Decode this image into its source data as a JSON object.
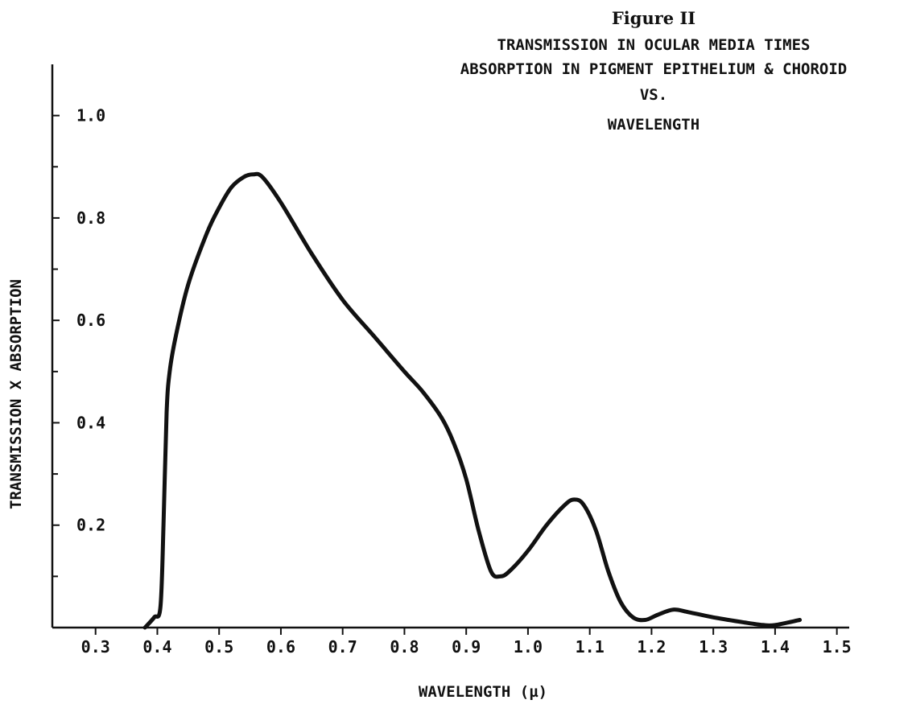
{
  "chart_data": {
    "type": "line",
    "figure_label": "Figure II",
    "title_lines": [
      "TRANSMISSION IN OCULAR MEDIA TIMES",
      "ABSORPTION IN PIGMENT EPITHELIUM & CHOROID",
      "VS.",
      "WAVELENGTH"
    ],
    "xlabel": "WAVELENGTH (µ)",
    "ylabel": "TRANSMISSION X ABSORPTION",
    "xlim": [
      0.23,
      1.52
    ],
    "ylim": [
      0,
      1.1
    ],
    "x_ticks": [
      {
        "value": 0.3,
        "label": "0.3"
      },
      {
        "value": 0.4,
        "label": "0.4"
      },
      {
        "value": 0.5,
        "label": "0.5"
      },
      {
        "value": 0.6,
        "label": "0.6"
      },
      {
        "value": 0.7,
        "label": "0.7"
      },
      {
        "value": 0.8,
        "label": "0.8"
      },
      {
        "value": 0.9,
        "label": "0.9"
      },
      {
        "value": 1.0,
        "label": "1.0"
      },
      {
        "value": 1.1,
        "label": "1.1"
      },
      {
        "value": 1.2,
        "label": "1.2"
      },
      {
        "value": 1.3,
        "label": "1.3"
      },
      {
        "value": 1.4,
        "label": "1.4"
      },
      {
        "value": 1.5,
        "label": "1.5"
      }
    ],
    "y_minor_ticks": [
      0.1,
      0.3,
      0.5,
      0.7,
      0.9
    ],
    "y_ticks": [
      {
        "value": 0.2,
        "label": "0.2"
      },
      {
        "value": 0.4,
        "label": "0.4"
      },
      {
        "value": 0.6,
        "label": "0.6"
      },
      {
        "value": 0.8,
        "label": "0.8"
      },
      {
        "value": 1.0,
        "label": "1.0"
      }
    ],
    "grid": false,
    "series": [
      {
        "x": [
          0.38,
          0.395,
          0.405,
          0.41,
          0.415,
          0.42,
          0.43,
          0.45,
          0.48,
          0.5,
          0.52,
          0.54,
          0.555,
          0.57,
          0.6,
          0.65,
          0.7,
          0.75,
          0.8,
          0.83,
          0.86,
          0.88,
          0.9,
          0.92,
          0.94,
          0.955,
          0.97,
          1.0,
          1.03,
          1.06,
          1.075,
          1.09,
          1.11,
          1.13,
          1.15,
          1.17,
          1.19,
          1.21,
          1.235,
          1.26,
          1.3,
          1.35,
          1.38,
          1.4,
          1.44
        ],
        "y": [
          0.0,
          0.02,
          0.04,
          0.2,
          0.42,
          0.5,
          0.57,
          0.67,
          0.77,
          0.82,
          0.86,
          0.88,
          0.885,
          0.88,
          0.83,
          0.73,
          0.64,
          0.57,
          0.5,
          0.46,
          0.41,
          0.36,
          0.29,
          0.19,
          0.11,
          0.1,
          0.11,
          0.15,
          0.2,
          0.24,
          0.25,
          0.24,
          0.19,
          0.11,
          0.05,
          0.02,
          0.015,
          0.025,
          0.035,
          0.03,
          0.02,
          0.01,
          0.005,
          0.005,
          0.015
        ]
      }
    ]
  }
}
